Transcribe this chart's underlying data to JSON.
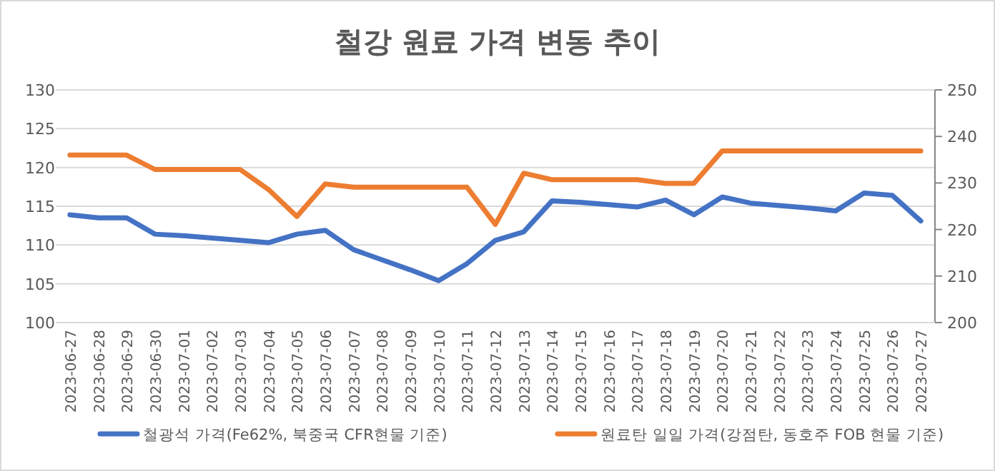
{
  "chart_data": {
    "type": "line",
    "title": "철강 원료 가격 변동 추이",
    "categories": [
      "2023-06-27",
      "2023-06-28",
      "2023-06-29",
      "2023-06-30",
      "2023-07-01",
      "2023-07-02",
      "2023-07-03",
      "2023-07-04",
      "2023-07-05",
      "2023-07-06",
      "2023-07-07",
      "2023-07-08",
      "2023-07-09",
      "2023-07-10",
      "2023-07-11",
      "2023-07-12",
      "2023-07-13",
      "2023-07-14",
      "2023-07-15",
      "2023-07-16",
      "2023-07-17",
      "2023-07-18",
      "2023-07-19",
      "2023-07-20",
      "2023-07-21",
      "2023-07-22",
      "2023-07-23",
      "2023-07-24",
      "2023-07-25",
      "2023-07-26",
      "2023-07-27"
    ],
    "series": [
      {
        "name": "철광석 가격(Fe62%, 북중국 CFR현물 기준)",
        "color": "#4472c4",
        "values": [
          113.9,
          113.5,
          113.5,
          111.4,
          111.2,
          110.9,
          110.6,
          110.3,
          111.4,
          111.9,
          109.4,
          108.1,
          106.8,
          105.4,
          107.6,
          110.6,
          111.7,
          115.7,
          115.5,
          115.2,
          114.9,
          115.8,
          113.9,
          116.2,
          115.4,
          115.1,
          114.8,
          114.4,
          116.7,
          116.4,
          113.1
        ]
      },
      {
        "name": "원료탄 일일 가격(강점탄, 동호주 FOB 현물 기준)",
        "color": "#ed7d31",
        "axis": "y2",
        "values": [
          236.0,
          236.0,
          236.0,
          232.9,
          232.9,
          232.9,
          232.9,
          228.6,
          222.8,
          229.8,
          229.1,
          229.1,
          229.1,
          229.1,
          229.1,
          221.1,
          232.1,
          230.7,
          230.7,
          230.7,
          230.7,
          229.9,
          229.9,
          236.9,
          236.9,
          236.9,
          236.9,
          236.9,
          236.9,
          236.9,
          236.9
        ]
      }
    ],
    "ylim": [
      100,
      130
    ],
    "yticks": [
      100,
      105,
      110,
      115,
      120,
      125,
      130
    ],
    "y2lim": [
      200,
      250
    ],
    "y2ticks": [
      200,
      210,
      220,
      230,
      240,
      250
    ],
    "grid": "y",
    "legend": "bottom"
  }
}
